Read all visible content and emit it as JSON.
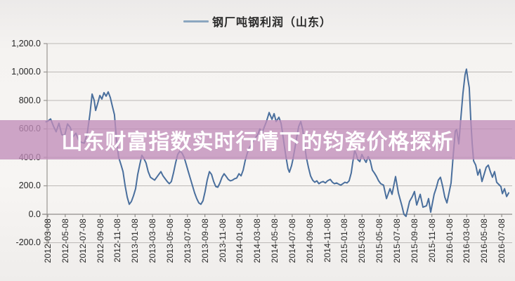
{
  "page": {
    "bg": "#f2f0ee"
  },
  "legend": {
    "label": "钢厂吨钢利润（山东）",
    "sample_color": "#8ba6bf"
  },
  "overlay_banner": {
    "text": "山东财富指数实时行情下的钧瓷价格探析",
    "bg_color": "rgba(194,141,186,0.78)",
    "text_color": "#ffffff"
  },
  "chart_data": {
    "type": "line",
    "title": "",
    "legend_position": "top-center",
    "grid": "horizontal-only",
    "ylim": [
      -200,
      1200
    ],
    "y_ticks": [
      {
        "value": 1200,
        "label": "1,200.0"
      },
      {
        "value": 1000,
        "label": "1,000.0"
      },
      {
        "value": 800,
        "label": "800.0"
      },
      {
        "value": 600,
        "label": "600.0"
      },
      {
        "value": 400,
        "label": "400.0"
      },
      {
        "value": 200,
        "label": "200.0"
      },
      {
        "value": 0,
        "label": "0.0"
      },
      {
        "value": -200,
        "label": "-200.0"
      }
    ],
    "x_tick_labels": [
      "2012-03-08",
      "2012-05-08",
      "2012-07-08",
      "2012-09-08",
      "2012-11-08",
      "2013-01-08",
      "2013-03-08",
      "2013-05-08",
      "2013-07-08",
      "2013-09-08",
      "2013-11-08",
      "2014-01-08",
      "2014-03-08",
      "2014-05-08",
      "2014-07-08",
      "2014-09-08",
      "2014-11-08",
      "2015-01-08",
      "2015-03-08",
      "2015-05-08",
      "2015-07-08",
      "2015-09-08",
      "2015-11-08",
      "2016-01-08",
      "2016-03-08",
      "2016-05-08",
      "2016-07-08"
    ],
    "x_unit": "fractional index into x_tick_labels (0 = 2012-03-08, 26 = 2016-07-08)",
    "series": [
      {
        "name": "钢厂吨钢利润（山东）",
        "color": "#4a6f9d",
        "points": [
          [
            -0.1,
            650
          ],
          [
            0,
            655
          ],
          [
            0.16,
            670
          ],
          [
            0.32,
            620
          ],
          [
            0.48,
            580
          ],
          [
            0.64,
            640
          ],
          [
            0.8,
            560
          ],
          [
            0.97,
            555
          ],
          [
            1.13,
            635
          ],
          [
            1.29,
            610
          ],
          [
            1.45,
            545
          ],
          [
            1.61,
            570
          ],
          [
            1.77,
            520
          ],
          [
            1.93,
            505
          ],
          [
            2.09,
            500
          ],
          [
            2.25,
            560
          ],
          [
            2.41,
            700
          ],
          [
            2.54,
            845
          ],
          [
            2.66,
            800
          ],
          [
            2.74,
            730
          ],
          [
            2.86,
            780
          ],
          [
            2.98,
            835
          ],
          [
            3.1,
            810
          ],
          [
            3.22,
            855
          ],
          [
            3.34,
            830
          ],
          [
            3.46,
            860
          ],
          [
            3.58,
            820
          ],
          [
            3.7,
            760
          ],
          [
            3.82,
            700
          ],
          [
            3.94,
            520
          ],
          [
            4.06,
            400
          ],
          [
            4.19,
            350
          ],
          [
            4.31,
            300
          ],
          [
            4.43,
            200
          ],
          [
            4.55,
            120
          ],
          [
            4.67,
            70
          ],
          [
            4.79,
            90
          ],
          [
            4.91,
            130
          ],
          [
            5.03,
            180
          ],
          [
            5.15,
            280
          ],
          [
            5.27,
            350
          ],
          [
            5.39,
            415
          ],
          [
            5.51,
            390
          ],
          [
            5.63,
            360
          ],
          [
            5.75,
            300
          ],
          [
            5.88,
            260
          ],
          [
            6,
            250
          ],
          [
            6.12,
            240
          ],
          [
            6.24,
            260
          ],
          [
            6.36,
            280
          ],
          [
            6.48,
            300
          ],
          [
            6.6,
            270
          ],
          [
            6.72,
            250
          ],
          [
            6.84,
            230
          ],
          [
            6.96,
            215
          ],
          [
            7.08,
            230
          ],
          [
            7.2,
            290
          ],
          [
            7.32,
            360
          ],
          [
            7.44,
            420
          ],
          [
            7.57,
            445
          ],
          [
            7.69,
            430
          ],
          [
            7.81,
            400
          ],
          [
            7.93,
            350
          ],
          [
            8.05,
            300
          ],
          [
            8.17,
            250
          ],
          [
            8.29,
            200
          ],
          [
            8.41,
            150
          ],
          [
            8.53,
            110
          ],
          [
            8.65,
            80
          ],
          [
            8.77,
            70
          ],
          [
            8.89,
            95
          ],
          [
            9.01,
            160
          ],
          [
            9.13,
            240
          ],
          [
            9.26,
            300
          ],
          [
            9.38,
            280
          ],
          [
            9.5,
            230
          ],
          [
            9.62,
            195
          ],
          [
            9.74,
            190
          ],
          [
            9.86,
            220
          ],
          [
            9.98,
            260
          ],
          [
            10.1,
            285
          ],
          [
            10.22,
            265
          ],
          [
            10.34,
            245
          ],
          [
            10.46,
            235
          ],
          [
            10.58,
            240
          ],
          [
            10.7,
            250
          ],
          [
            10.82,
            255
          ],
          [
            10.95,
            285
          ],
          [
            11.07,
            270
          ],
          [
            11.19,
            310
          ],
          [
            11.31,
            380
          ],
          [
            11.43,
            430
          ],
          [
            11.55,
            470
          ],
          [
            11.67,
            490
          ],
          [
            11.79,
            520
          ],
          [
            11.91,
            540
          ],
          [
            12.03,
            560
          ],
          [
            12.15,
            600
          ],
          [
            12.27,
            570
          ],
          [
            12.39,
            610
          ],
          [
            12.52,
            650
          ],
          [
            12.68,
            715
          ],
          [
            12.84,
            667
          ],
          [
            12.96,
            707
          ],
          [
            13.08,
            652
          ],
          [
            13.24,
            682
          ],
          [
            13.36,
            640
          ],
          [
            13.44,
            578
          ],
          [
            13.56,
            470
          ],
          [
            13.64,
            405
          ],
          [
            13.76,
            321
          ],
          [
            13.84,
            296
          ],
          [
            13.96,
            340
          ],
          [
            14.04,
            385
          ],
          [
            14.16,
            470
          ],
          [
            14.25,
            533
          ],
          [
            14.37,
            617
          ],
          [
            14.49,
            652
          ],
          [
            14.61,
            590
          ],
          [
            14.69,
            504
          ],
          [
            14.81,
            400
          ],
          [
            14.93,
            330
          ],
          [
            15.05,
            270
          ],
          [
            15.17,
            240
          ],
          [
            15.29,
            225
          ],
          [
            15.41,
            235
          ],
          [
            15.53,
            215
          ],
          [
            15.65,
            225
          ],
          [
            15.77,
            230
          ],
          [
            15.9,
            220
          ],
          [
            16.02,
            235
          ],
          [
            16.18,
            245
          ],
          [
            16.3,
            225
          ],
          [
            16.42,
            215
          ],
          [
            16.54,
            220
          ],
          [
            16.66,
            212
          ],
          [
            16.78,
            205
          ],
          [
            16.9,
            215
          ],
          [
            17.02,
            225
          ],
          [
            17.14,
            220
          ],
          [
            17.26,
            235
          ],
          [
            17.38,
            290
          ],
          [
            17.46,
            360
          ],
          [
            17.58,
            450
          ],
          [
            17.67,
            420
          ],
          [
            17.75,
            385
          ],
          [
            17.87,
            370
          ],
          [
            17.99,
            420
          ],
          [
            18.11,
            390
          ],
          [
            18.23,
            365
          ],
          [
            18.35,
            405
          ],
          [
            18.47,
            375
          ],
          [
            18.59,
            310
          ],
          [
            18.71,
            290
          ],
          [
            18.83,
            265
          ],
          [
            18.95,
            235
          ],
          [
            19.07,
            215
          ],
          [
            19.23,
            205
          ],
          [
            19.4,
            110
          ],
          [
            19.6,
            180
          ],
          [
            19.72,
            140
          ],
          [
            19.92,
            265
          ],
          [
            20.08,
            150
          ],
          [
            20.28,
            60
          ],
          [
            20.4,
            0
          ],
          [
            20.52,
            -15
          ],
          [
            20.72,
            90
          ],
          [
            20.88,
            125
          ],
          [
            21,
            160
          ],
          [
            21.13,
            65
          ],
          [
            21.33,
            140
          ],
          [
            21.49,
            50
          ],
          [
            21.69,
            60
          ],
          [
            21.81,
            110
          ],
          [
            21.93,
            15
          ],
          [
            22.13,
            140
          ],
          [
            22.25,
            185
          ],
          [
            22.37,
            240
          ],
          [
            22.49,
            260
          ],
          [
            22.62,
            195
          ],
          [
            22.74,
            120
          ],
          [
            22.86,
            80
          ],
          [
            22.98,
            150
          ],
          [
            23.1,
            220
          ],
          [
            23.22,
            410
          ],
          [
            23.34,
            585
          ],
          [
            23.42,
            595
          ],
          [
            23.54,
            495
          ],
          [
            23.66,
            680
          ],
          [
            23.78,
            850
          ],
          [
            23.9,
            980
          ],
          [
            23.98,
            1020
          ],
          [
            24.06,
            950
          ],
          [
            24.14,
            890
          ],
          [
            24.23,
            660
          ],
          [
            24.31,
            495
          ],
          [
            24.39,
            375
          ],
          [
            24.51,
            345
          ],
          [
            24.63,
            275
          ],
          [
            24.75,
            315
          ],
          [
            24.87,
            230
          ],
          [
            24.99,
            280
          ],
          [
            25.11,
            330
          ],
          [
            25.23,
            345
          ],
          [
            25.35,
            300
          ],
          [
            25.47,
            260
          ],
          [
            25.59,
            300
          ],
          [
            25.71,
            225
          ],
          [
            25.83,
            210
          ],
          [
            25.95,
            195
          ],
          [
            26.04,
            145
          ],
          [
            26.16,
            180
          ],
          [
            26.28,
            125
          ],
          [
            26.4,
            150
          ]
        ]
      }
    ]
  }
}
